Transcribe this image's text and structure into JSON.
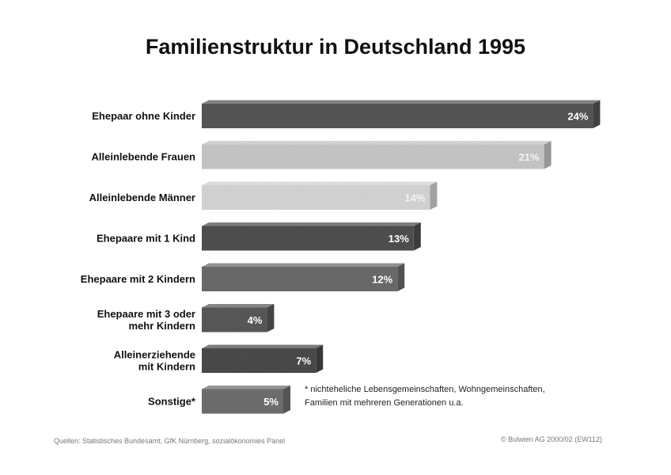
{
  "chart_data": {
    "type": "bar",
    "orientation": "horizontal",
    "title": "Familienstruktur in Deutschland 1995",
    "categories": [
      [
        "Ehepaar ohne Kinder"
      ],
      [
        "Alleinlebende Frauen"
      ],
      [
        "Alleinlebende Männer"
      ],
      [
        "Ehepaare mit 1 Kind"
      ],
      [
        "Ehepaare mit 2 Kindern"
      ],
      [
        "Ehepaare mit 3 oder",
        "mehr Kindern"
      ],
      [
        "Alleinerziehende",
        "mit Kindern"
      ],
      [
        "Sonstige*"
      ]
    ],
    "values": [
      24,
      21,
      14,
      13,
      12,
      4,
      7,
      5
    ],
    "value_labels": [
      "24%",
      "21%",
      "14%",
      "13%",
      "12%",
      "4%",
      "7%",
      "5%"
    ],
    "colors": [
      "#555555",
      "#c6c6c6",
      "#d4d4d4",
      "#4f4f4f",
      "#6a6a6a",
      "#585858",
      "#4a4a4a",
      "#6e6e6e"
    ],
    "label_colors": [
      "#ffffff",
      "#f4f4f4",
      "#f4f4f4",
      "#ffffff",
      "#ffffff",
      "#ffffff",
      "#ffffff",
      "#ffffff"
    ],
    "unit": "%",
    "grid": false,
    "legend": "none"
  },
  "footnote": {
    "line1": "* nichteheliche Lebensgemeinschaften, Wohngemeinschaften,",
    "line2": "Familien mit mehreren Generationen u.a."
  },
  "source": "Quellen: Statistisches Bundesamt, GfK Nürnberg, sozialökonomies Panel",
  "copyright": "© Bulwien AG 2000/02 (EW112)"
}
